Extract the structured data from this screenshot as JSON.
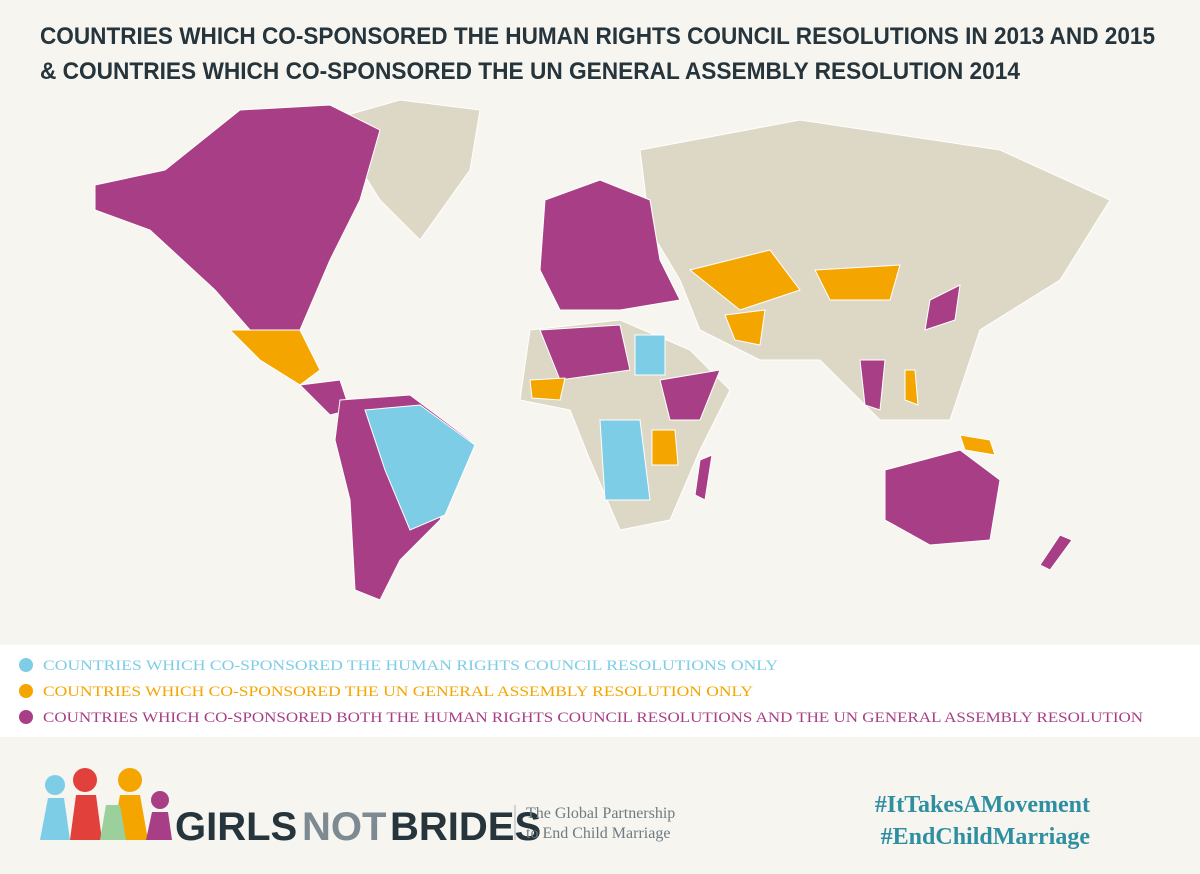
{
  "header": {
    "title_lines": [
      "COUNTRIES WHICH CO-SPONSORED THE HUMAN RIGHTS COUNCIL RESOLUTIONS IN 2013 AND 2015",
      "& COUNTRIES WHICH CO-SPONSORED THE UN GENERAL ASSEMBLY RESOLUTION 2014"
    ]
  },
  "legend": {
    "items": [
      {
        "label": "COUNTRIES WHICH CO-SPONSORED THE HUMAN RIGHTS COUNCIL RESOLUTIONS ONLY",
        "color": "#7ecde6"
      },
      {
        "label": "COUNTRIES WHICH CO-SPONSORED THE UN GENERAL ASSEMBLY RESOLUTION ONLY",
        "color": "#f5a500"
      },
      {
        "label": "COUNTRIES WHICH CO-SPONSORED BOTH THE HUMAN RIGHTS COUNCIL RESOLUTIONS AND THE UN GENERAL ASSEMBLY RESOLUTION",
        "color": "#a83f86"
      }
    ]
  },
  "footer": {
    "logo_words": [
      "GIRLS",
      "NOT",
      "BRIDES"
    ],
    "tagline": [
      "The Global Partnership",
      "to End Child Marriage"
    ],
    "hashtags": [
      "#ItTakesAMovement",
      "#EndChildMarriage"
    ]
  }
}
